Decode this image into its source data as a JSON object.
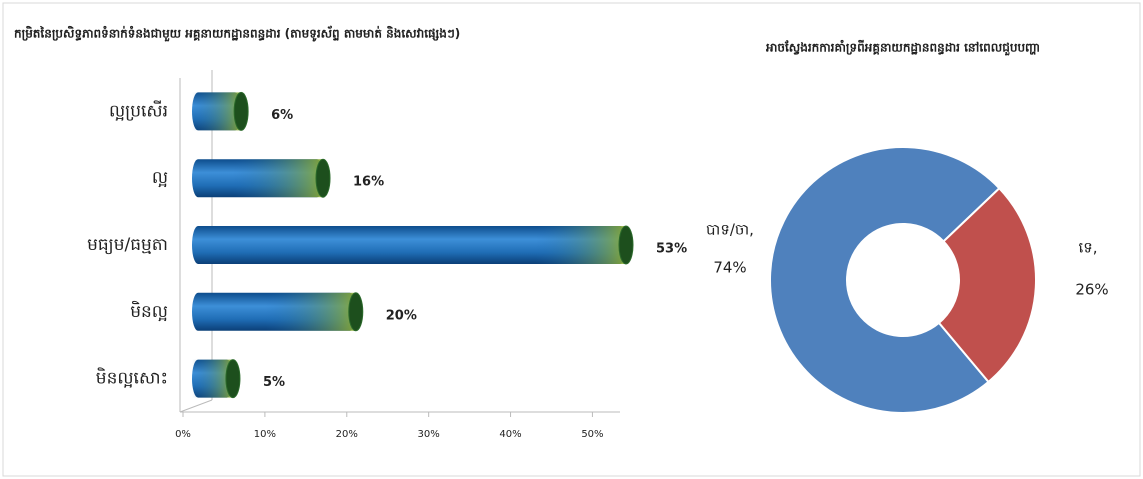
{
  "chart_data": [
    {
      "type": "hbar",
      "title": "កម្រិតនៃប្រសិទ្ធភាពទំនាក់ទំនងជាមួយ អគ្គនាយកដ្ឋានពន្ធដារ (តាមទូរស័ព្ទ តាមមាត់ និងសេវាផ្សេងៗ)",
      "categories": [
        "ល្អប្រសើរ",
        "ល្អ",
        "មធ្យម/ធម្មតា",
        "មិនល្អ",
        "មិនល្អសោះ"
      ],
      "values": [
        6,
        16,
        53,
        20,
        5
      ],
      "value_labels": [
        "6%",
        "16%",
        "53%",
        "20%",
        "5%"
      ],
      "color": "#1f6db5",
      "xlim": [
        0,
        53
      ],
      "xticks": [
        {
          "value": 0,
          "label": "0%"
        },
        {
          "value": 10,
          "label": "10%"
        },
        {
          "value": 20,
          "label": "20%"
        },
        {
          "value": 30,
          "label": "30%"
        },
        {
          "value": 40,
          "label": "40%"
        },
        {
          "value": 50,
          "label": "50%"
        }
      ]
    },
    {
      "type": "donut",
      "title": "អាចស្វែងរកការគាំទ្រពីអគ្គនាយកដ្ឋានពន្ធដារ នៅពេលជួបបញ្ហា",
      "categories": [
        "បាទ/ចា,",
        "ទេ,"
      ],
      "values": [
        74,
        26
      ],
      "value_labels": [
        "74%",
        "26%"
      ],
      "colors": [
        "#4f81bd",
        "#c0504d"
      ]
    }
  ]
}
